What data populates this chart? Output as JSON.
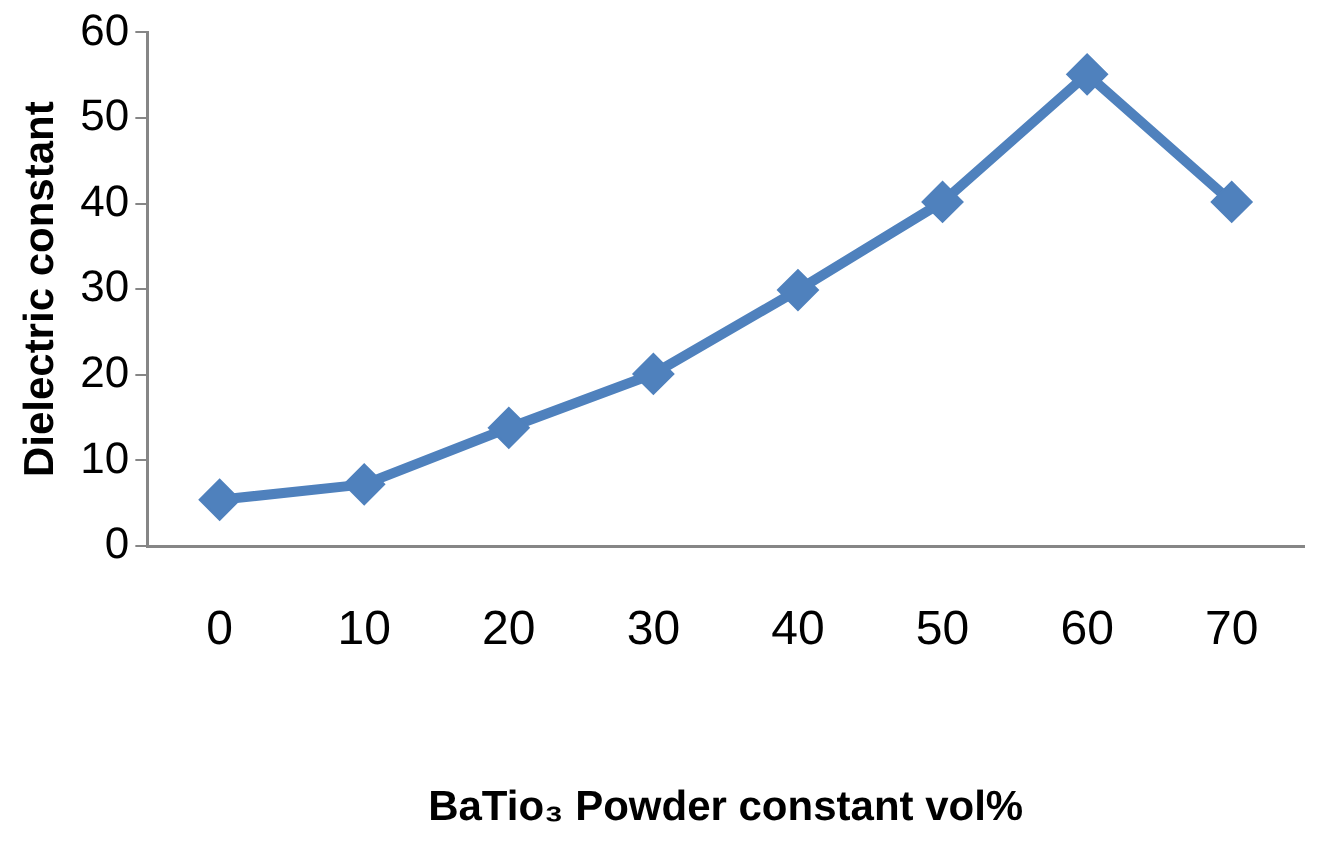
{
  "chart_data": {
    "type": "line",
    "xlabel": "BaTio₃ Powder constant vol%",
    "ylabel": "Dielectric constant",
    "categories": [
      "0",
      "10",
      "20",
      "30",
      "40",
      "50",
      "60",
      "70"
    ],
    "series": [
      {
        "color": "#4f81bd",
        "values": [
          5.4,
          7.2,
          13.8,
          20.1,
          29.9,
          40.2,
          55.1,
          40.2
        ]
      }
    ],
    "ylim": [
      0,
      60
    ],
    "yticks": [
      0,
      10,
      20,
      30,
      40,
      50,
      60
    ],
    "grid": false,
    "legend": false,
    "marker": "diamond",
    "line_style": "solid"
  }
}
